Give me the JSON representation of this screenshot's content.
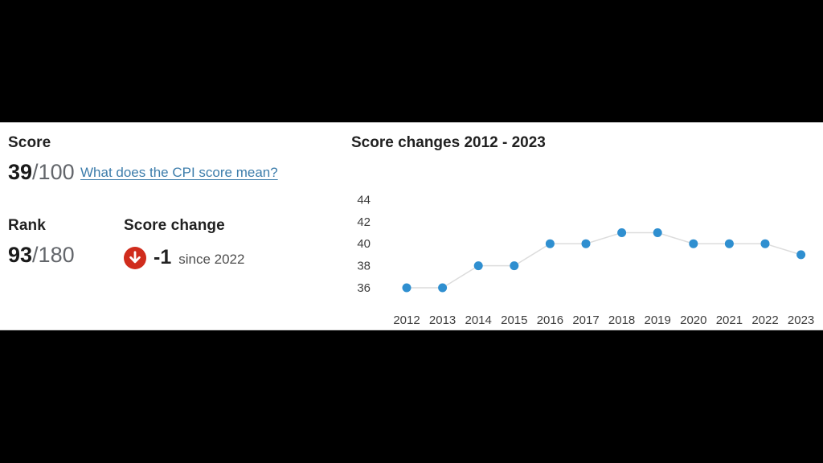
{
  "page": {
    "background_color": "#000000",
    "panel_background": "#ffffff"
  },
  "score_section": {
    "label": "Score",
    "value": "39",
    "denominator": "/100",
    "link_text": "What does the CPI score mean?",
    "link_color": "#3d7dab"
  },
  "rank_section": {
    "label": "Rank",
    "value": "93",
    "denominator": "/180"
  },
  "score_change_section": {
    "label": "Score change",
    "value": "-1",
    "caption": "since 2022",
    "icon": "arrow-down-circle-icon",
    "icon_color": "#d02c1d"
  },
  "chart_data": {
    "type": "line",
    "title": "Score changes 2012 - 2023",
    "x": [
      2012,
      2013,
      2014,
      2015,
      2016,
      2017,
      2018,
      2019,
      2020,
      2021,
      2022,
      2023
    ],
    "values": [
      36,
      36,
      38,
      38,
      40,
      40,
      41,
      41,
      40,
      40,
      40,
      39
    ],
    "yticks": [
      36,
      38,
      40,
      42,
      44
    ],
    "ylim": [
      35,
      45
    ],
    "xlabel": "",
    "ylabel": "",
    "grid": false,
    "legend": false,
    "point_color": "#2f8fd0",
    "line_color": "#dcdcdc",
    "axis_text_color": "#3d3d3d"
  }
}
